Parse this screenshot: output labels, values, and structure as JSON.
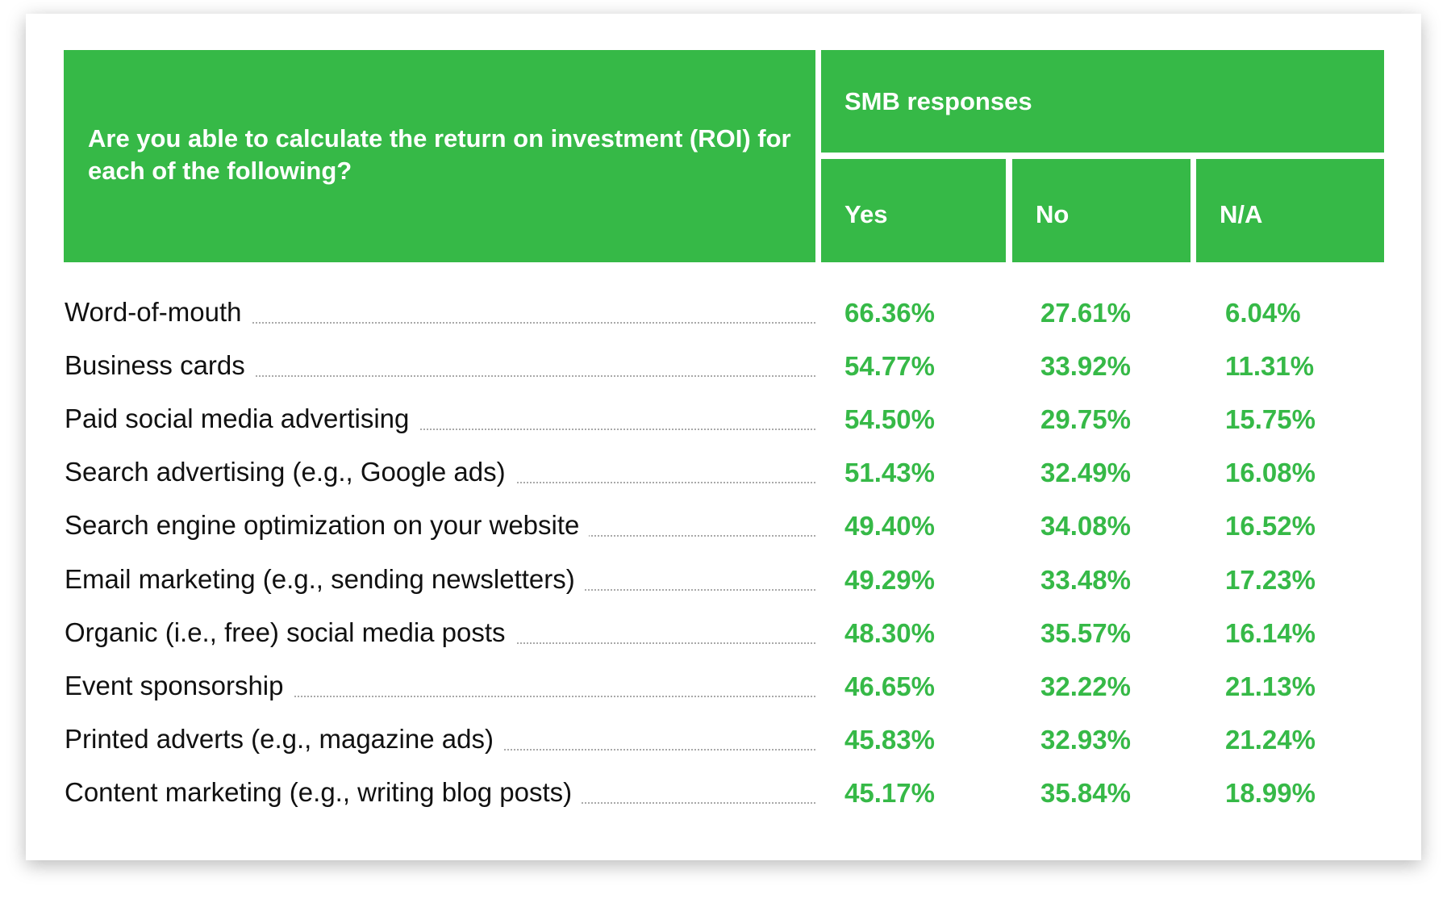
{
  "header": {
    "question": "Are you able to calculate the return on investment (ROI) for each of the following?",
    "group": "SMB responses",
    "columns": [
      "Yes",
      "No",
      "N/A"
    ]
  },
  "accent_color": "#36b947",
  "rows": [
    {
      "label": "Word-of-mouth",
      "values": [
        "66.36%",
        "27.61%",
        "6.04%"
      ]
    },
    {
      "label": "Business cards",
      "values": [
        "54.77%",
        "33.92%",
        "11.31%"
      ]
    },
    {
      "label": "Paid social media advertising",
      "values": [
        "54.50%",
        "29.75%",
        "15.75%"
      ]
    },
    {
      "label": "Search advertising (e.g., Google ads)",
      "values": [
        "51.43%",
        "32.49%",
        "16.08%"
      ]
    },
    {
      "label": "Search engine optimization on your website",
      "values": [
        "49.40%",
        "34.08%",
        "16.52%"
      ]
    },
    {
      "label": "Email marketing (e.g., sending newsletters)",
      "values": [
        "49.29%",
        "33.48%",
        "17.23%"
      ]
    },
    {
      "label": "Organic (i.e., free) social media posts",
      "values": [
        "48.30%",
        "35.57%",
        "16.14%"
      ]
    },
    {
      "label": "Event sponsorship",
      "values": [
        "46.65%",
        "32.22%",
        "21.13%"
      ]
    },
    {
      "label": "Printed adverts (e.g., magazine ads)",
      "values": [
        "45.83%",
        "32.93%",
        "21.24%"
      ]
    },
    {
      "label": "Content marketing (e.g., writing blog posts)",
      "values": [
        "45.17%",
        "35.84%",
        "18.99%"
      ]
    }
  ]
}
